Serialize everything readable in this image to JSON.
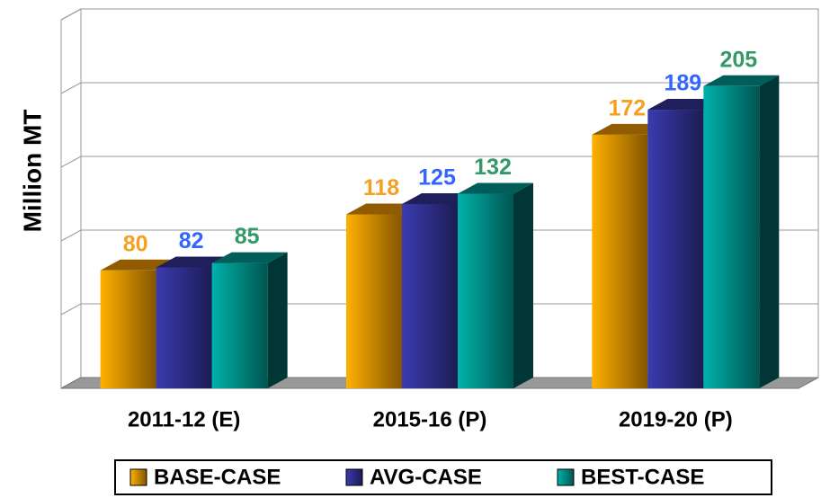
{
  "chart_data": {
    "type": "bar3d",
    "y_axis_label": "Million MT",
    "categories": [
      "2011-12 (E)",
      "2015-16 (P)",
      "2019-20 (P)"
    ],
    "series": [
      {
        "name": "BASE-CASE",
        "color": "#f29a00",
        "label_color": "#f4a020",
        "values": [
          80,
          118,
          172
        ]
      },
      {
        "name": "AVG-CASE",
        "color": "#333399",
        "label_color": "#3366ff",
        "values": [
          82,
          125,
          189
        ]
      },
      {
        "name": "BEST-CASE",
        "color": "#009b94",
        "label_color": "#339966",
        "values": [
          85,
          132,
          205
        ]
      }
    ],
    "ylim": [
      0,
      250
    ],
    "yticks": [
      0,
      50,
      100,
      150,
      200,
      250
    ],
    "grid": true,
    "legend": "bottom"
  }
}
